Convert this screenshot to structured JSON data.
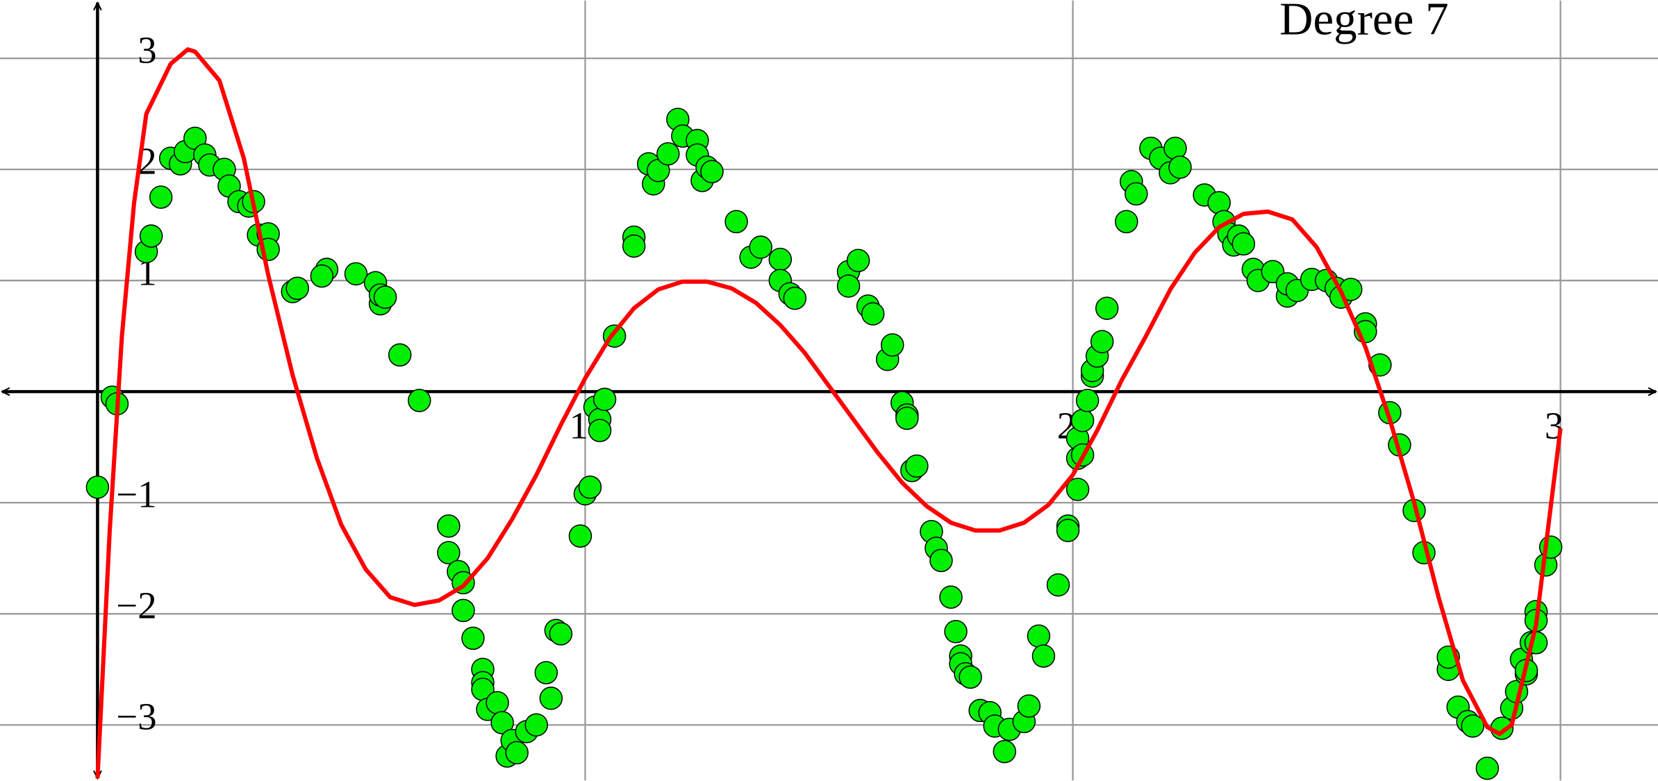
{
  "chart_data": {
    "type": "scatter",
    "title": "Degree 7",
    "xlim": [
      -0.2,
      3.2
    ],
    "ylim": [
      -3.5,
      3.52
    ],
    "xticks": [
      1,
      2,
      3
    ],
    "yticks": [
      {
        "value": -3,
        "label": "−3"
      },
      {
        "value": -2,
        "label": "−2"
      },
      {
        "value": -1,
        "label": "−1"
      },
      1,
      2,
      3
    ],
    "grid": true,
    "series": [
      {
        "type": "scatter",
        "color": "#00ee00",
        "x": [
          0.0,
          0.03,
          0.04,
          0.1,
          0.11,
          0.13,
          0.15,
          0.17,
          0.18,
          0.2,
          0.22,
          0.23,
          0.26,
          0.27,
          0.29,
          0.31,
          0.32,
          0.33,
          0.35,
          0.35,
          0.4,
          0.41,
          0.47,
          0.46,
          0.53,
          0.57,
          0.58,
          0.58,
          0.59,
          0.62,
          0.66,
          0.72,
          0.72,
          0.74,
          0.75,
          0.75,
          0.77,
          0.79,
          0.79,
          0.79,
          0.8,
          0.82,
          0.83,
          0.84,
          0.85,
          0.86,
          0.88,
          0.9,
          0.92,
          0.93,
          0.94,
          0.95,
          0.99,
          1.0,
          1.01,
          1.02,
          1.03,
          1.03,
          1.04,
          1.06,
          1.1,
          1.1,
          1.13,
          1.14,
          1.15,
          1.17,
          1.19,
          1.2,
          1.23,
          1.23,
          1.24,
          1.25,
          1.26,
          1.31,
          1.34,
          1.36,
          1.4,
          1.4,
          1.42,
          1.43,
          1.54,
          1.54,
          1.56,
          1.58,
          1.59,
          1.62,
          1.63,
          1.65,
          1.66,
          1.66,
          1.67,
          1.68,
          1.71,
          1.72,
          1.73,
          1.75,
          1.76,
          1.77,
          1.77,
          1.78,
          1.79,
          1.81,
          1.83,
          1.84,
          1.86,
          1.87,
          1.9,
          1.91,
          1.93,
          1.94,
          1.97,
          1.99,
          1.99,
          2.01,
          2.01,
          2.01,
          2.02,
          2.02,
          2.03,
          2.04,
          2.04,
          2.05,
          2.06,
          2.07,
          2.11,
          2.12,
          2.13,
          2.16,
          2.18,
          2.2,
          2.21,
          2.22,
          2.27,
          2.3,
          2.31,
          2.32,
          2.33,
          2.34,
          2.35,
          2.37,
          2.38,
          2.41,
          2.44,
          2.44,
          2.46,
          2.49,
          2.52,
          2.54,
          2.55,
          2.57,
          2.6,
          2.6,
          2.63,
          2.65,
          2.67,
          2.7,
          2.72,
          2.77,
          2.77,
          2.79,
          2.81,
          2.82,
          2.85,
          2.88,
          2.9,
          2.91,
          2.92,
          2.93,
          2.93,
          2.94,
          2.95,
          2.95,
          2.95,
          2.97,
          2.98
        ],
        "values": [
          -0.86,
          -0.05,
          -0.11,
          1.26,
          1.4,
          1.75,
          2.1,
          2.05,
          2.16,
          2.28,
          2.13,
          2.04,
          2.0,
          1.85,
          1.71,
          1.67,
          1.71,
          1.41,
          1.42,
          1.28,
          0.9,
          0.93,
          1.1,
          1.04,
          1.06,
          0.98,
          0.79,
          0.87,
          0.85,
          0.33,
          -0.08,
          -1.21,
          -1.45,
          -1.62,
          -1.72,
          -1.97,
          -2.22,
          -2.5,
          -2.62,
          -2.68,
          -2.86,
          -2.8,
          -2.98,
          -3.28,
          -3.14,
          -3.25,
          -3.06,
          -3.0,
          -2.53,
          -2.76,
          -2.15,
          -2.18,
          -1.3,
          -0.92,
          -0.86,
          -0.14,
          -0.25,
          -0.35,
          -0.07,
          0.5,
          1.39,
          1.31,
          2.05,
          1.87,
          1.99,
          2.14,
          2.45,
          2.3,
          2.26,
          2.13,
          1.9,
          2.02,
          1.98,
          1.53,
          1.21,
          1.3,
          1.19,
          1.0,
          0.88,
          0.84,
          1.08,
          0.95,
          1.18,
          0.77,
          0.7,
          0.29,
          0.42,
          -0.1,
          -0.21,
          -0.24,
          -0.71,
          -0.67,
          -1.26,
          -1.41,
          -1.52,
          -1.85,
          -2.16,
          -2.38,
          -2.45,
          -2.54,
          -2.57,
          -2.87,
          -2.89,
          -3.01,
          -3.24,
          -3.04,
          -2.97,
          -2.83,
          -2.2,
          -2.38,
          -1.74,
          -1.21,
          -1.25,
          -0.88,
          -0.6,
          -0.42,
          -0.57,
          -0.26,
          -0.08,
          0.14,
          0.19,
          0.32,
          0.45,
          0.75,
          1.53,
          1.89,
          1.78,
          2.19,
          2.1,
          1.97,
          2.19,
          2.02,
          1.77,
          1.7,
          1.53,
          1.42,
          1.32,
          1.4,
          1.33,
          1.1,
          1.0,
          1.08,
          0.86,
          0.97,
          0.91,
          1.01,
          1.0,
          0.93,
          0.85,
          0.92,
          0.61,
          0.54,
          0.24,
          -0.19,
          -0.48,
          -1.07,
          -1.45,
          -2.5,
          -2.39,
          -2.84,
          -2.97,
          -3.01,
          -3.39,
          -3.03,
          -2.85,
          -2.7,
          -2.41,
          -2.54,
          -2.51,
          -2.26,
          -1.98,
          -2.06,
          -2.26,
          -1.56,
          -1.4
        ]
      },
      {
        "type": "line",
        "color": "#ff0000",
        "x": [
          0,
          0.025,
          0.05,
          0.075,
          0.1,
          0.15,
          0.185,
          0.2,
          0.25,
          0.3,
          0.35,
          0.4,
          0.45,
          0.5,
          0.55,
          0.6,
          0.65,
          0.7,
          0.75,
          0.8,
          0.85,
          0.9,
          0.95,
          1.0,
          1.05,
          1.1,
          1.15,
          1.2,
          1.25,
          1.3,
          1.35,
          1.4,
          1.45,
          1.5,
          1.55,
          1.6,
          1.65,
          1.7,
          1.75,
          1.8,
          1.85,
          1.9,
          1.95,
          2.0,
          2.05,
          2.1,
          2.15,
          2.2,
          2.25,
          2.3,
          2.35,
          2.4,
          2.45,
          2.5,
          2.55,
          2.6,
          2.65,
          2.7,
          2.75,
          2.8,
          2.85,
          2.875,
          2.9,
          2.95,
          3.0
        ],
        "values": [
          -3.48,
          -1.25,
          0.5,
          1.7,
          2.5,
          2.95,
          3.08,
          3.06,
          2.8,
          2.1,
          1.05,
          0.15,
          -0.6,
          -1.2,
          -1.6,
          -1.85,
          -1.92,
          -1.88,
          -1.75,
          -1.5,
          -1.15,
          -0.75,
          -0.3,
          0.12,
          0.48,
          0.75,
          0.92,
          0.99,
          0.99,
          0.93,
          0.8,
          0.6,
          0.35,
          0.05,
          -0.25,
          -0.55,
          -0.82,
          -1.03,
          -1.18,
          -1.25,
          -1.25,
          -1.18,
          -1.02,
          -0.75,
          -0.35,
          0.1,
          0.5,
          0.92,
          1.25,
          1.48,
          1.6,
          1.62,
          1.55,
          1.3,
          0.9,
          0.4,
          -0.25,
          -1.0,
          -1.85,
          -2.6,
          -3.02,
          -3.08,
          -3.0,
          -2.1,
          -0.33
        ]
      }
    ]
  }
}
